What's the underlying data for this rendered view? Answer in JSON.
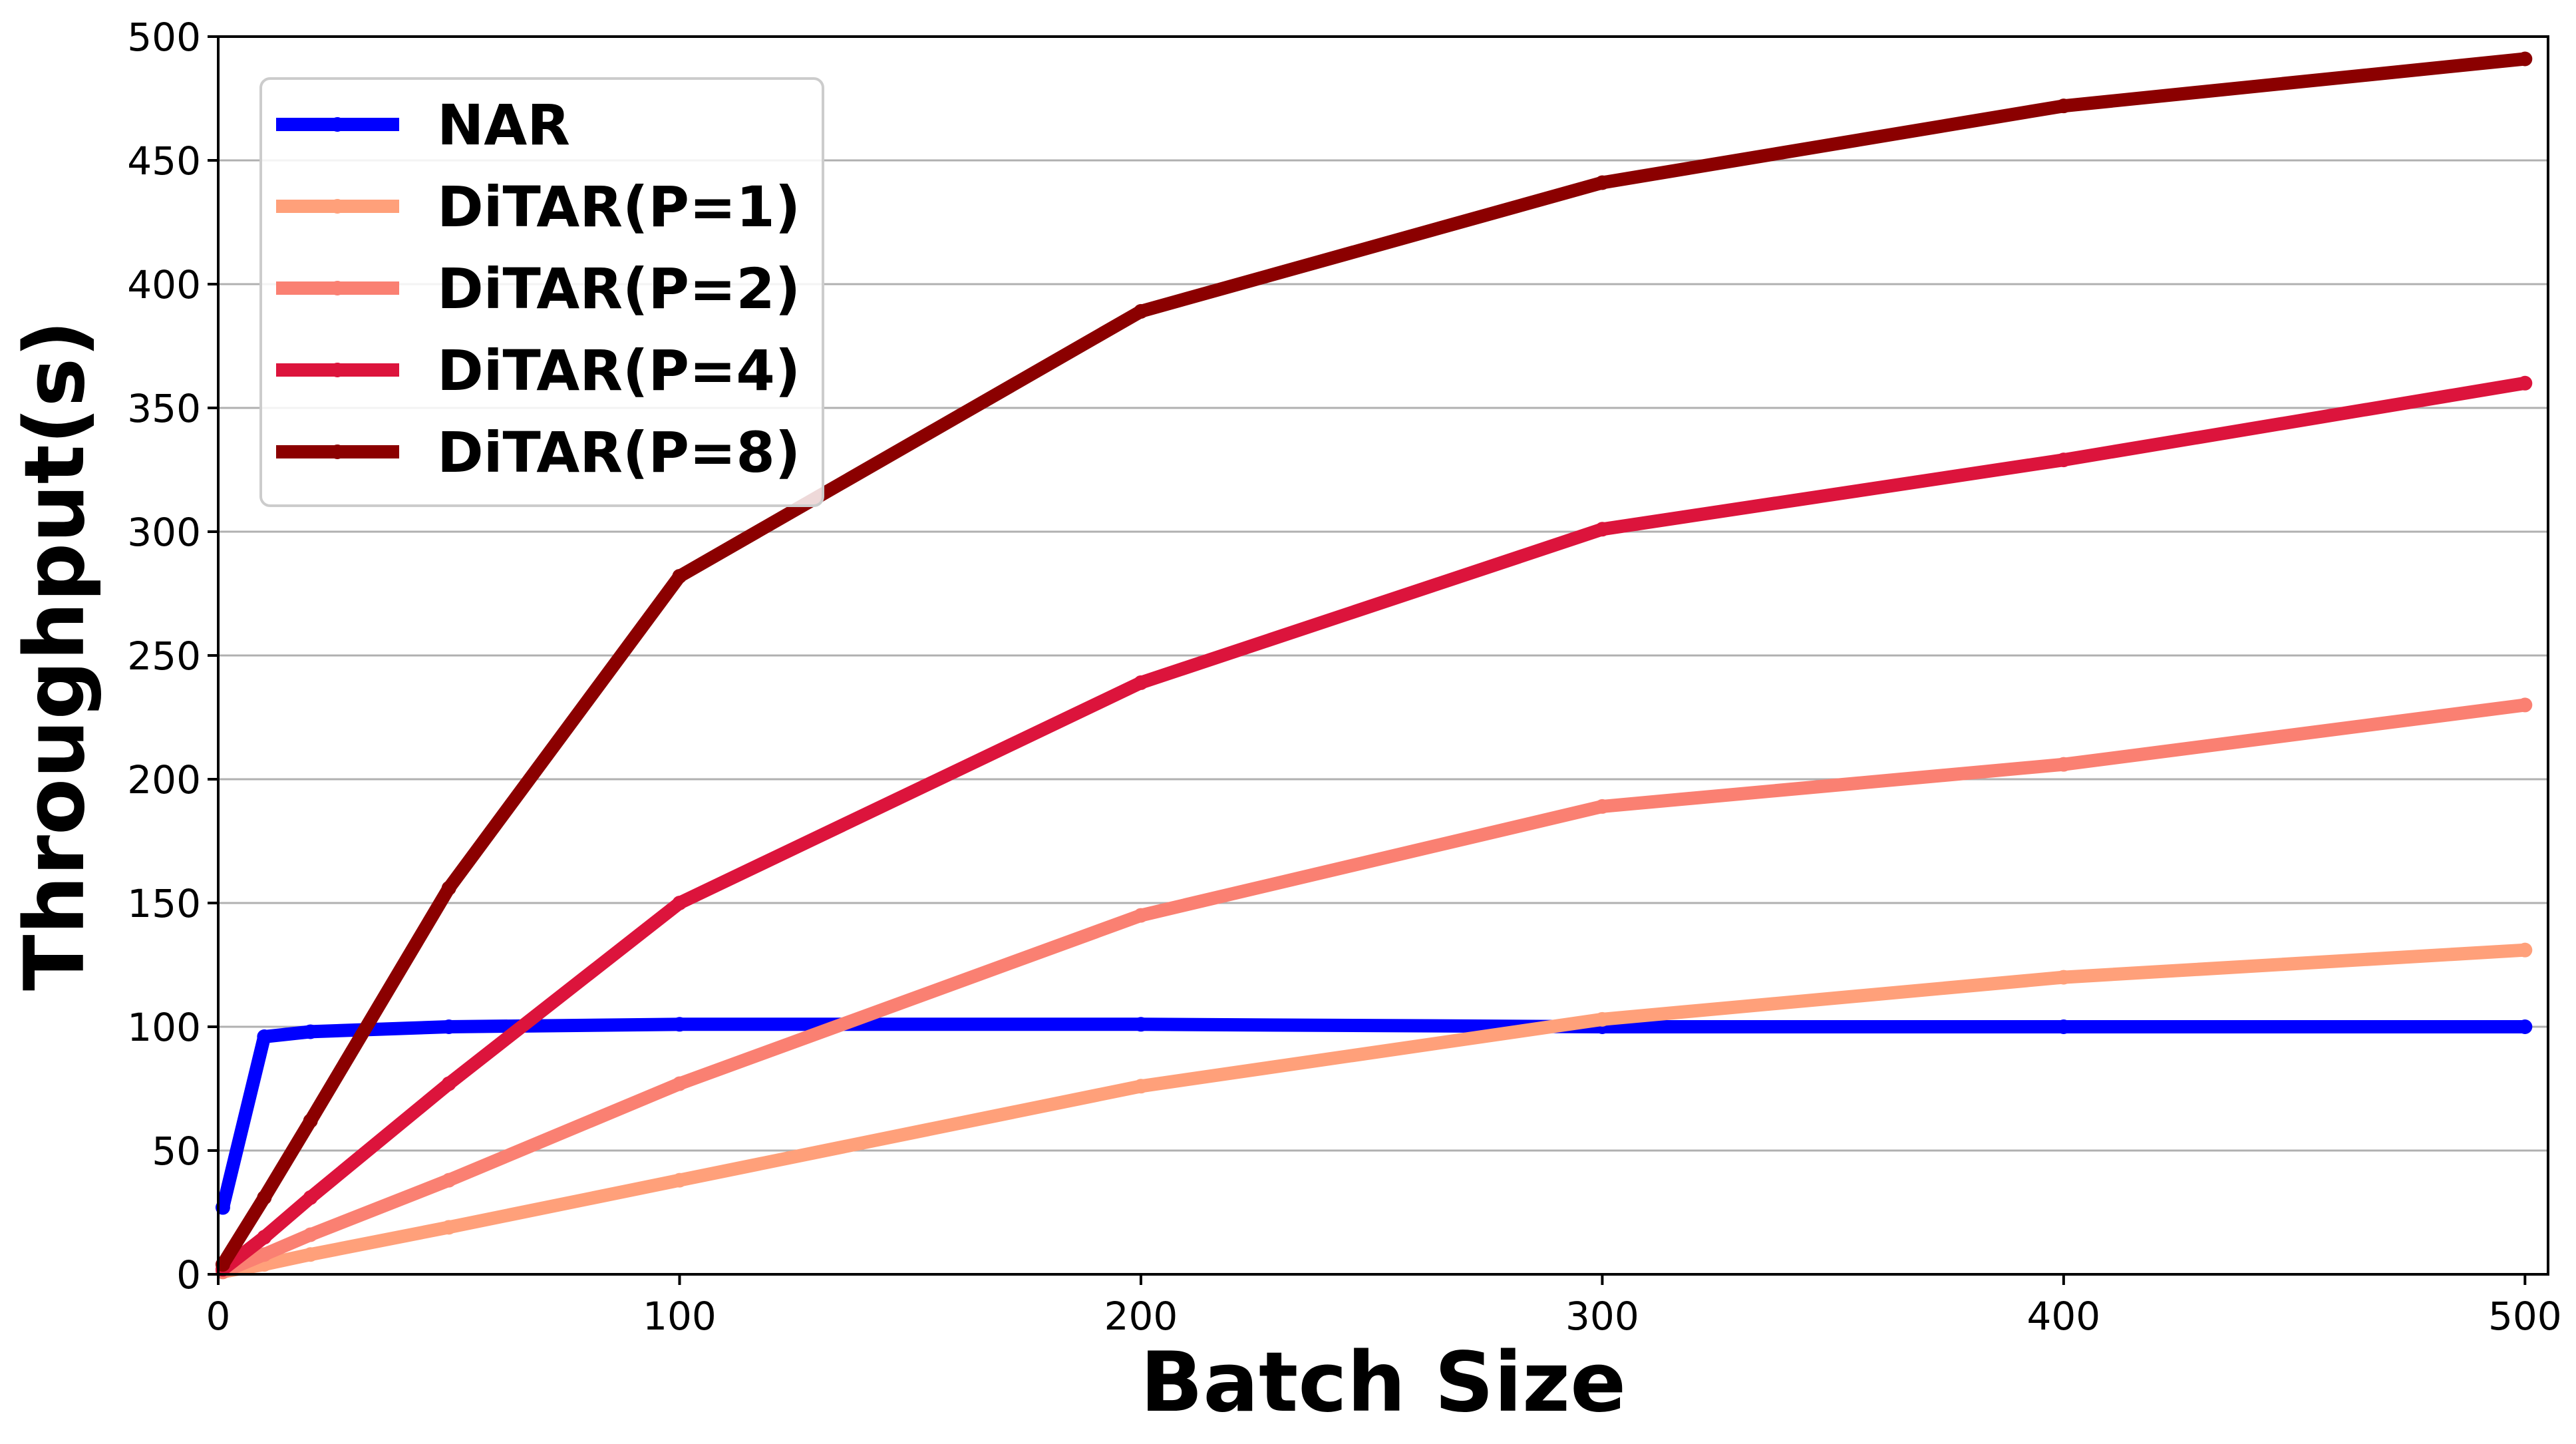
{
  "chart_data": {
    "type": "line",
    "title": "",
    "xlabel": "Batch Size",
    "ylabel": "Throughput(s)",
    "xlim": [
      0,
      505
    ],
    "ylim": [
      0,
      500
    ],
    "xticks": [
      0,
      100,
      200,
      300,
      400,
      500
    ],
    "yticks": [
      0,
      50,
      100,
      150,
      200,
      250,
      300,
      350,
      400,
      450,
      500
    ],
    "grid": "horizontal",
    "legend_position": "top-left",
    "series": [
      {
        "name": "NAR",
        "color": "#0000ff",
        "x": [
          1,
          10,
          20,
          50,
          100,
          200,
          300,
          400,
          500
        ],
        "y": [
          27,
          96,
          98,
          100,
          101,
          101,
          100,
          100,
          100
        ]
      },
      {
        "name": "DiTAR(P=1)",
        "color": "#ffa07a",
        "x": [
          1,
          10,
          20,
          50,
          100,
          200,
          300,
          400,
          500
        ],
        "y": [
          1,
          4,
          8,
          19,
          38,
          76,
          103,
          120,
          131
        ]
      },
      {
        "name": "DiTAR(P=2)",
        "color": "#fa8072",
        "x": [
          1,
          10,
          20,
          50,
          100,
          200,
          300,
          400,
          500
        ],
        "y": [
          1,
          8,
          16,
          38,
          77,
          145,
          189,
          206,
          230
        ]
      },
      {
        "name": "DiTAR(P=4)",
        "color": "#dc143c",
        "x": [
          1,
          10,
          20,
          50,
          100,
          200,
          300,
          400,
          500
        ],
        "y": [
          2,
          15,
          31,
          77,
          150,
          239,
          301,
          329,
          360
        ]
      },
      {
        "name": "DiTAR(P=8)",
        "color": "#8b0000",
        "x": [
          1,
          10,
          20,
          50,
          100,
          200,
          300,
          400,
          500
        ],
        "y": [
          4,
          31,
          62,
          156,
          282,
          389,
          441,
          472,
          491
        ]
      }
    ]
  }
}
